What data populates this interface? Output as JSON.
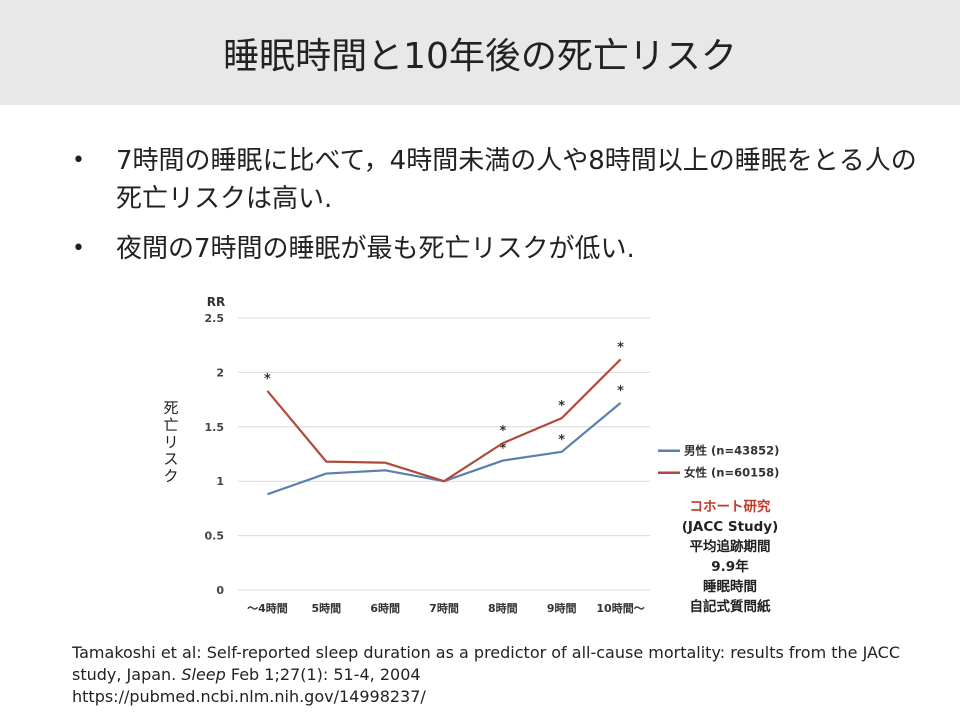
{
  "title": "睡眠時間と10年後の死亡リスク",
  "bullets": [
    "7時間の睡眠に比べて，4時間未満の人や8時間以上の睡眠をとる人の死亡リスクは高い.",
    "夜間の7時間の睡眠が最も死亡リスクが低い."
  ],
  "ylabel_side": [
    "死",
    "亡",
    "リ",
    "ス",
    "ク"
  ],
  "note": {
    "line1": "コホート研究",
    "line2": "(JACC Study)",
    "line3": "平均追跡期間",
    "line4": "9.9年",
    "line5": "睡眠時間",
    "line6": "自記式質問紙"
  },
  "citation": {
    "part1": "Tamakoshi et al: Self-reported sleep duration as a predictor of all-cause mortality: results from the JACC study, Japan. ",
    "journal": "Sleep",
    "part2": " Feb 1;27(1): 51-4, 2004",
    "url": "https://pubmed.ncbi.nlm.nih.gov/14998237/"
  },
  "chart_data": {
    "type": "line",
    "ylabel": "RR",
    "categories": [
      "～4時間",
      "5時間",
      "6時間",
      "7時間",
      "8時間",
      "9時間",
      "10時間～"
    ],
    "ylim": [
      0,
      2.5
    ],
    "yticks": [
      "0",
      "0.5",
      "1",
      "1.5",
      "2",
      "2.5"
    ],
    "grid": true,
    "legend_position": "right",
    "series": [
      {
        "name": "男性 (n=43852)",
        "color": "#5b7fb0",
        "values": [
          0.88,
          1.07,
          1.1,
          1.0,
          1.19,
          1.27,
          1.72
        ],
        "significant": [
          false,
          false,
          false,
          false,
          true,
          true,
          true
        ]
      },
      {
        "name": "女性 (n=60158)",
        "color": "#b04a3a",
        "values": [
          1.83,
          1.18,
          1.17,
          1.0,
          1.35,
          1.58,
          2.12
        ],
        "significant": [
          true,
          false,
          false,
          false,
          true,
          true,
          true
        ]
      }
    ],
    "marker_symbol": "*"
  }
}
